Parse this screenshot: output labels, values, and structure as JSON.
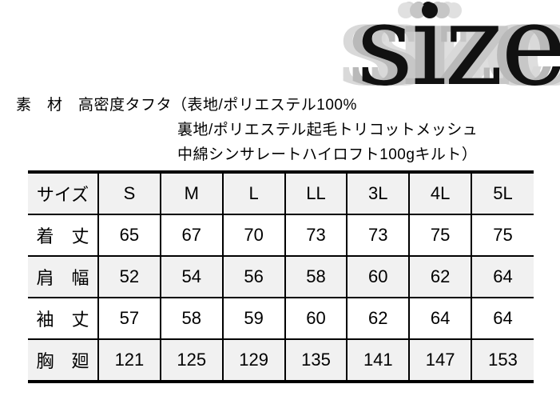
{
  "logo": {
    "text": "size"
  },
  "material": {
    "line1": "素　材　高密度タフタ（表地/ポリエステル100%",
    "line2": "裏地/ポリエステル起毛トリコットメッシュ",
    "line3": "中綿シンサレートハイロフト100gキルト）"
  },
  "size_table": {
    "columns": [
      "サイズ",
      "S",
      "M",
      "L",
      "LL",
      "3L",
      "4L",
      "5L"
    ],
    "rows": [
      {
        "label": "着　丈",
        "values": [
          "65",
          "67",
          "70",
          "73",
          "73",
          "75",
          "75"
        ]
      },
      {
        "label": "肩　幅",
        "values": [
          "52",
          "54",
          "56",
          "58",
          "60",
          "62",
          "64"
        ]
      },
      {
        "label": "袖　丈",
        "values": [
          "57",
          "58",
          "59",
          "60",
          "62",
          "64",
          "64"
        ]
      },
      {
        "label": "胸　廻",
        "values": [
          "121",
          "125",
          "129",
          "135",
          "141",
          "147",
          "153"
        ]
      }
    ]
  },
  "colors": {
    "stripe_bg": "#f1f1f1",
    "text": "#000000",
    "border": "#000000",
    "ghost_gray_dark": "#bcbcbc",
    "ghost_gray_light": "#dedede"
  }
}
